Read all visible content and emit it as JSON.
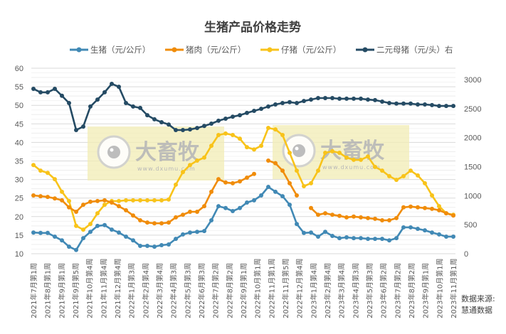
{
  "title": "生猪产品价格走势",
  "source": {
    "line1": "数据来源:",
    "line2": "慧通数据"
  },
  "watermark": {
    "brand": "大畜牧",
    "url": "www.dxumu.com"
  },
  "colors": {
    "live_hog": "#4189B5",
    "pork": "#F08C0A",
    "piglet": "#F8C31A",
    "sow": "#254B64",
    "grid": "#D9D9D9",
    "watermark_bg": "#F2ECB4"
  },
  "chart_data": {
    "type": "line",
    "title": "生猪产品价格走势",
    "legend_position": "top",
    "grid": true,
    "left_axis": {
      "min": 10,
      "max": 60,
      "step": 5,
      "ticks": [
        "60",
        "55",
        "50",
        "45",
        "40",
        "35",
        "30",
        "25",
        "20",
        "15",
        "10"
      ]
    },
    "right_axis": {
      "min": 0,
      "max": 3000,
      "step": 500,
      "ticks": [
        "3000",
        "2500",
        "2000",
        "1500",
        "1000",
        "500",
        "0"
      ]
    },
    "x_tick_labels": [
      "2021年7月第1周",
      "2021年8月第1周",
      "2021年9月第1周",
      "2021年9月第5周",
      "2021年10月第4周",
      "2021年11月第4周",
      "2021年12月第4周",
      "2022年1月第3周",
      "2022年2月第4周",
      "2022年3月第4周",
      "2022年4月第3周",
      "2022年5月第3周",
      "2022年6月第3周",
      "2022年7月第2周",
      "2022年8月第2周",
      "2022年9月第1周",
      "2022年10月第1周",
      "2022年11月第1周",
      "2022年11月第5周",
      "2022年12月第4周",
      "2023年1月第4周",
      "2023年2月第4周",
      "2023年3月第4周",
      "2023年4月第3周",
      "2023年5月第3周",
      "2023年6月第2周",
      "2023年7月第2周",
      "2023年8月第2周",
      "2023年9月第1周",
      "2023年10月第1周",
      "2023年11月第1周"
    ],
    "series": [
      {
        "name": "生猪（元/公斤）",
        "axis": "left",
        "color": "#4189B5",
        "values": [
          15.7,
          15.6,
          15.6,
          14.6,
          13.6,
          11.9,
          11.0,
          14.2,
          15.9,
          17.5,
          17.7,
          16.5,
          15.7,
          14.6,
          13.6,
          12.1,
          12.1,
          11.9,
          12.3,
          12.5,
          14.0,
          15.2,
          15.7,
          15.9,
          16.1,
          19.0,
          22.8,
          22.3,
          21.5,
          22.3,
          23.8,
          24.4,
          25.7,
          28.0,
          26.7,
          25.5,
          23.2,
          18.0,
          15.6,
          15.7,
          14.6,
          15.9,
          14.8,
          14.2,
          14.4,
          14.2,
          14.2,
          14.0,
          14.0,
          14.0,
          13.6,
          14.2,
          17.1,
          17.1,
          16.7,
          16.3,
          15.7,
          15.2,
          14.6,
          14.6
        ]
      },
      {
        "name": "猪肉（元/公斤）",
        "axis": "left",
        "color": "#F08C0A",
        "values": [
          25.7,
          25.5,
          25.3,
          24.9,
          24.4,
          22.5,
          21.3,
          23.2,
          24.0,
          24.2,
          24.4,
          23.8,
          22.8,
          21.7,
          20.3,
          19.0,
          18.4,
          18.2,
          18.2,
          18.4,
          19.8,
          20.5,
          21.3,
          21.3,
          22.8,
          26.7,
          30.1,
          29.2,
          29.0,
          29.5,
          30.5,
          31.5,
          null,
          35.1,
          34.4,
          32.4,
          29.0,
          25.7,
          null,
          22.3,
          20.5,
          20.9,
          20.5,
          20.2,
          19.8,
          20.0,
          19.8,
          19.6,
          19.4,
          19.0,
          19.0,
          19.6,
          22.5,
          22.7,
          22.5,
          22.3,
          22.1,
          21.7,
          20.9,
          20.3
        ]
      },
      {
        "name": "仔猪（元/公斤）",
        "axis": "left",
        "color": "#F8C31A",
        "values": [
          33.9,
          32.4,
          31.8,
          30.1,
          26.7,
          24.2,
          17.5,
          16.5,
          18.0,
          20.9,
          23.2,
          24.2,
          24.2,
          24.4,
          24.4,
          24.4,
          24.4,
          24.4,
          24.4,
          24.6,
          28.6,
          32.0,
          33.9,
          35.1,
          35.9,
          39.1,
          42.0,
          42.4,
          42.0,
          41.0,
          38.7,
          38.1,
          39.1,
          43.9,
          43.5,
          42.0,
          37.2,
          32.4,
          28.2,
          29.0,
          32.4,
          37.2,
          37.6,
          37.2,
          35.9,
          35.3,
          35.3,
          36.2,
          33.4,
          32.4,
          30.9,
          29.9,
          30.9,
          32.4,
          31.1,
          29.0,
          25.7,
          22.8,
          20.9,
          20.5
        ]
      },
      {
        "name": "二元母猪（元/头）右",
        "axis": "right",
        "color": "#254B64",
        "values": [
          2840,
          2780,
          2780,
          2840,
          2720,
          2595,
          2130,
          2190,
          2535,
          2655,
          2780,
          2925,
          2875,
          2595,
          2535,
          2510,
          2385,
          2315,
          2265,
          2225,
          2130,
          2130,
          2140,
          2165,
          2200,
          2240,
          2290,
          2325,
          2360,
          2385,
          2425,
          2460,
          2495,
          2535,
          2570,
          2595,
          2610,
          2595,
          2630,
          2655,
          2680,
          2680,
          2680,
          2670,
          2670,
          2670,
          2670,
          2655,
          2645,
          2620,
          2595,
          2585,
          2585,
          2585,
          2570,
          2570,
          2560,
          2545,
          2545,
          2545
        ]
      }
    ]
  }
}
